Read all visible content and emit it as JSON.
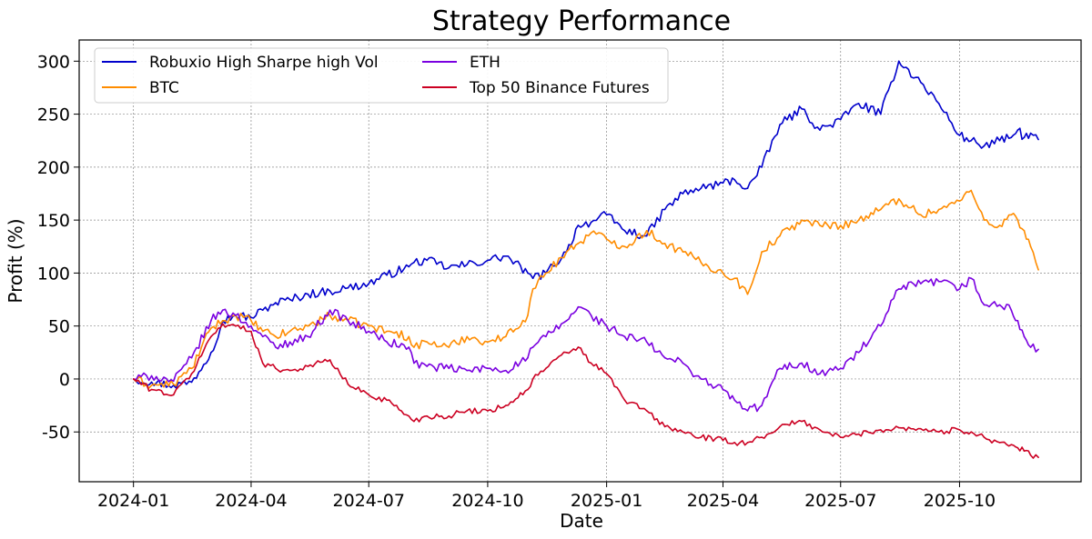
{
  "chart_data": {
    "type": "line",
    "title": "Strategy Performance",
    "xlabel": "Date",
    "ylabel": "Profit (%)",
    "x_ticks": [
      "2024-01",
      "2024-04",
      "2024-07",
      "2024-10",
      "2025-01",
      "2025-04",
      "2025-07",
      "2025-10"
    ],
    "y_ticks": [
      -50,
      0,
      50,
      100,
      150,
      200,
      250,
      300
    ],
    "xlim": [
      "2023-11-20",
      "2026-01-03"
    ],
    "ylim": [
      -97,
      320
    ],
    "grid": true,
    "legend_position": "top-left",
    "dates": [
      "2024-01-01",
      "2024-01-15",
      "2024-02-01",
      "2024-02-15",
      "2024-03-01",
      "2024-03-10",
      "2024-03-20",
      "2024-04-01",
      "2024-04-10",
      "2024-04-20",
      "2024-05-01",
      "2024-05-15",
      "2024-06-01",
      "2024-06-15",
      "2024-07-01",
      "2024-07-15",
      "2024-08-01",
      "2024-08-05",
      "2024-08-15",
      "2024-09-01",
      "2024-09-15",
      "2024-10-01",
      "2024-10-15",
      "2024-11-01",
      "2024-11-05",
      "2024-11-15",
      "2024-12-01",
      "2024-12-10",
      "2024-12-20",
      "2025-01-01",
      "2025-01-15",
      "2025-02-01",
      "2025-02-15",
      "2025-03-01",
      "2025-03-15",
      "2025-04-01",
      "2025-04-10",
      "2025-04-20",
      "2025-05-01",
      "2025-05-15",
      "2025-06-01",
      "2025-06-15",
      "2025-07-01",
      "2025-07-15",
      "2025-08-01",
      "2025-08-15",
      "2025-09-01",
      "2025-09-15",
      "2025-10-01",
      "2025-10-10",
      "2025-10-20",
      "2025-11-01",
      "2025-11-10",
      "2025-11-15",
      "2025-11-20",
      "2025-11-25",
      "2025-12-01"
    ],
    "series": [
      {
        "name": "Robuxio High Sharpe high Vol",
        "color": "#0000cc",
        "values": [
          0,
          -3,
          -6,
          -3,
          25,
          55,
          60,
          58,
          65,
          72,
          75,
          80,
          83,
          86,
          90,
          98,
          106,
          110,
          112,
          105,
          108,
          112,
          116,
          100,
          95,
          100,
          120,
          145,
          148,
          155,
          140,
          135,
          160,
          175,
          180,
          185,
          188,
          180,
          200,
          240,
          255,
          235,
          245,
          260,
          250,
          300,
          280,
          260,
          230,
          225,
          220,
          225,
          228,
          235,
          228,
          232,
          226
        ]
      },
      {
        "name": "BTC",
        "color": "#ff8c00",
        "values": [
          0,
          -6,
          -5,
          10,
          48,
          55,
          60,
          55,
          45,
          40,
          45,
          50,
          60,
          55,
          50,
          45,
          40,
          30,
          35,
          30,
          40,
          35,
          40,
          60,
          85,
          100,
          120,
          128,
          138,
          132,
          125,
          140,
          128,
          120,
          110,
          100,
          95,
          80,
          120,
          135,
          150,
          145,
          145,
          150,
          160,
          170,
          155,
          160,
          168,
          178,
          150,
          145,
          155,
          150,
          140,
          125,
          103
        ]
      },
      {
        "name": "ETH",
        "color": "#7a00e0",
        "values": [
          0,
          3,
          -2,
          20,
          55,
          65,
          60,
          50,
          40,
          30,
          35,
          40,
          65,
          55,
          45,
          35,
          30,
          15,
          12,
          10,
          8,
          10,
          8,
          20,
          30,
          40,
          55,
          68,
          60,
          50,
          40,
          35,
          20,
          15,
          0,
          -10,
          -20,
          -30,
          -25,
          10,
          15,
          5,
          10,
          25,
          50,
          85,
          90,
          92,
          85,
          95,
          70,
          70,
          65,
          55,
          40,
          30,
          28
        ]
      },
      {
        "name": "Top 50 Binance Futures",
        "color": "#cc0022",
        "values": [
          0,
          -10,
          -15,
          5,
          40,
          52,
          50,
          45,
          15,
          10,
          8,
          12,
          18,
          -5,
          -15,
          -20,
          -35,
          -40,
          -35,
          -35,
          -30,
          -30,
          -25,
          -10,
          0,
          10,
          25,
          30,
          15,
          5,
          -20,
          -30,
          -45,
          -50,
          -55,
          -58,
          -60,
          -60,
          -55,
          -45,
          -40,
          -48,
          -55,
          -52,
          -48,
          -46,
          -47,
          -50,
          -48,
          -50,
          -55,
          -60,
          -62,
          -65,
          -68,
          -72,
          -74
        ]
      }
    ]
  }
}
